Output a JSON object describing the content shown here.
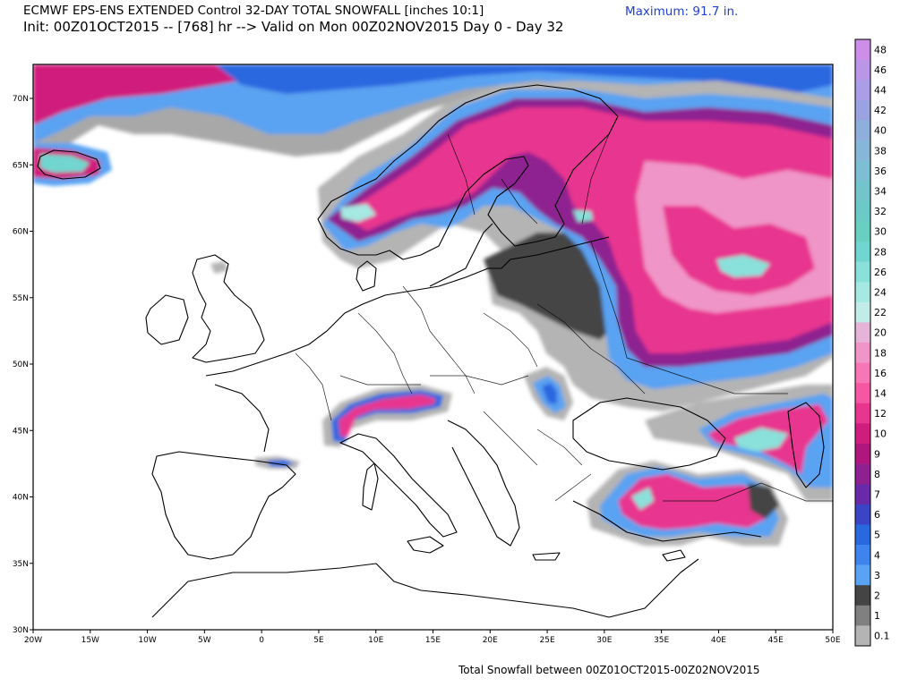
{
  "header": {
    "title_line1": "ECMWF EPS-ENS EXTENDED Control 32-DAY TOTAL SNOWFALL [inches 10:1]",
    "title_line2": "Init: 00Z01OCT2015 -- [768] hr --> Valid on Mon 00Z02NOV2015  Day 0 - Day 32",
    "maximum": "Maximum:  91.7 in."
  },
  "footer": "Total Snowfall between 00Z01OCT2015-00Z02NOV2015",
  "map": {
    "lon_labels": [
      "20W",
      "15W",
      "10W",
      "5W",
      "0",
      "5E",
      "10E",
      "15E",
      "20E",
      "25E",
      "30E",
      "35E",
      "40E",
      "45E",
      "50E"
    ],
    "lat_labels": [
      "70N",
      "65N",
      "60N",
      "55N",
      "50N",
      "45N",
      "40N",
      "35N",
      "30N"
    ]
  },
  "colorbar": {
    "labels": [
      "48",
      "46",
      "44",
      "42",
      "40",
      "38",
      "36",
      "34",
      "32",
      "30",
      "28",
      "26",
      "24",
      "22",
      "20",
      "18",
      "16",
      "14",
      "12",
      "10",
      "9",
      "8",
      "7",
      "6",
      "5",
      "4",
      "3",
      "2",
      "1",
      "0.1"
    ],
    "colors": [
      "#cc8ee6",
      "#bb96e8",
      "#ab9ee6",
      "#9aa2e2",
      "#8eaedc",
      "#86b6d8",
      "#7cbed2",
      "#74c4cc",
      "#6ccac6",
      "#68cfc1",
      "#70d6cf",
      "#8ae0da",
      "#a6e8e2",
      "#c2ece8",
      "#e6b4d8",
      "#f095c8",
      "#f577b6",
      "#f557a2",
      "#e8368f",
      "#d01c7c",
      "#b0177e",
      "#8e2090",
      "#6a2aa8",
      "#3b43c7",
      "#2a68e0",
      "#3e84ec",
      "#5aa2f2",
      "#444444",
      "#808080",
      "#b4b4b4"
    ]
  }
}
